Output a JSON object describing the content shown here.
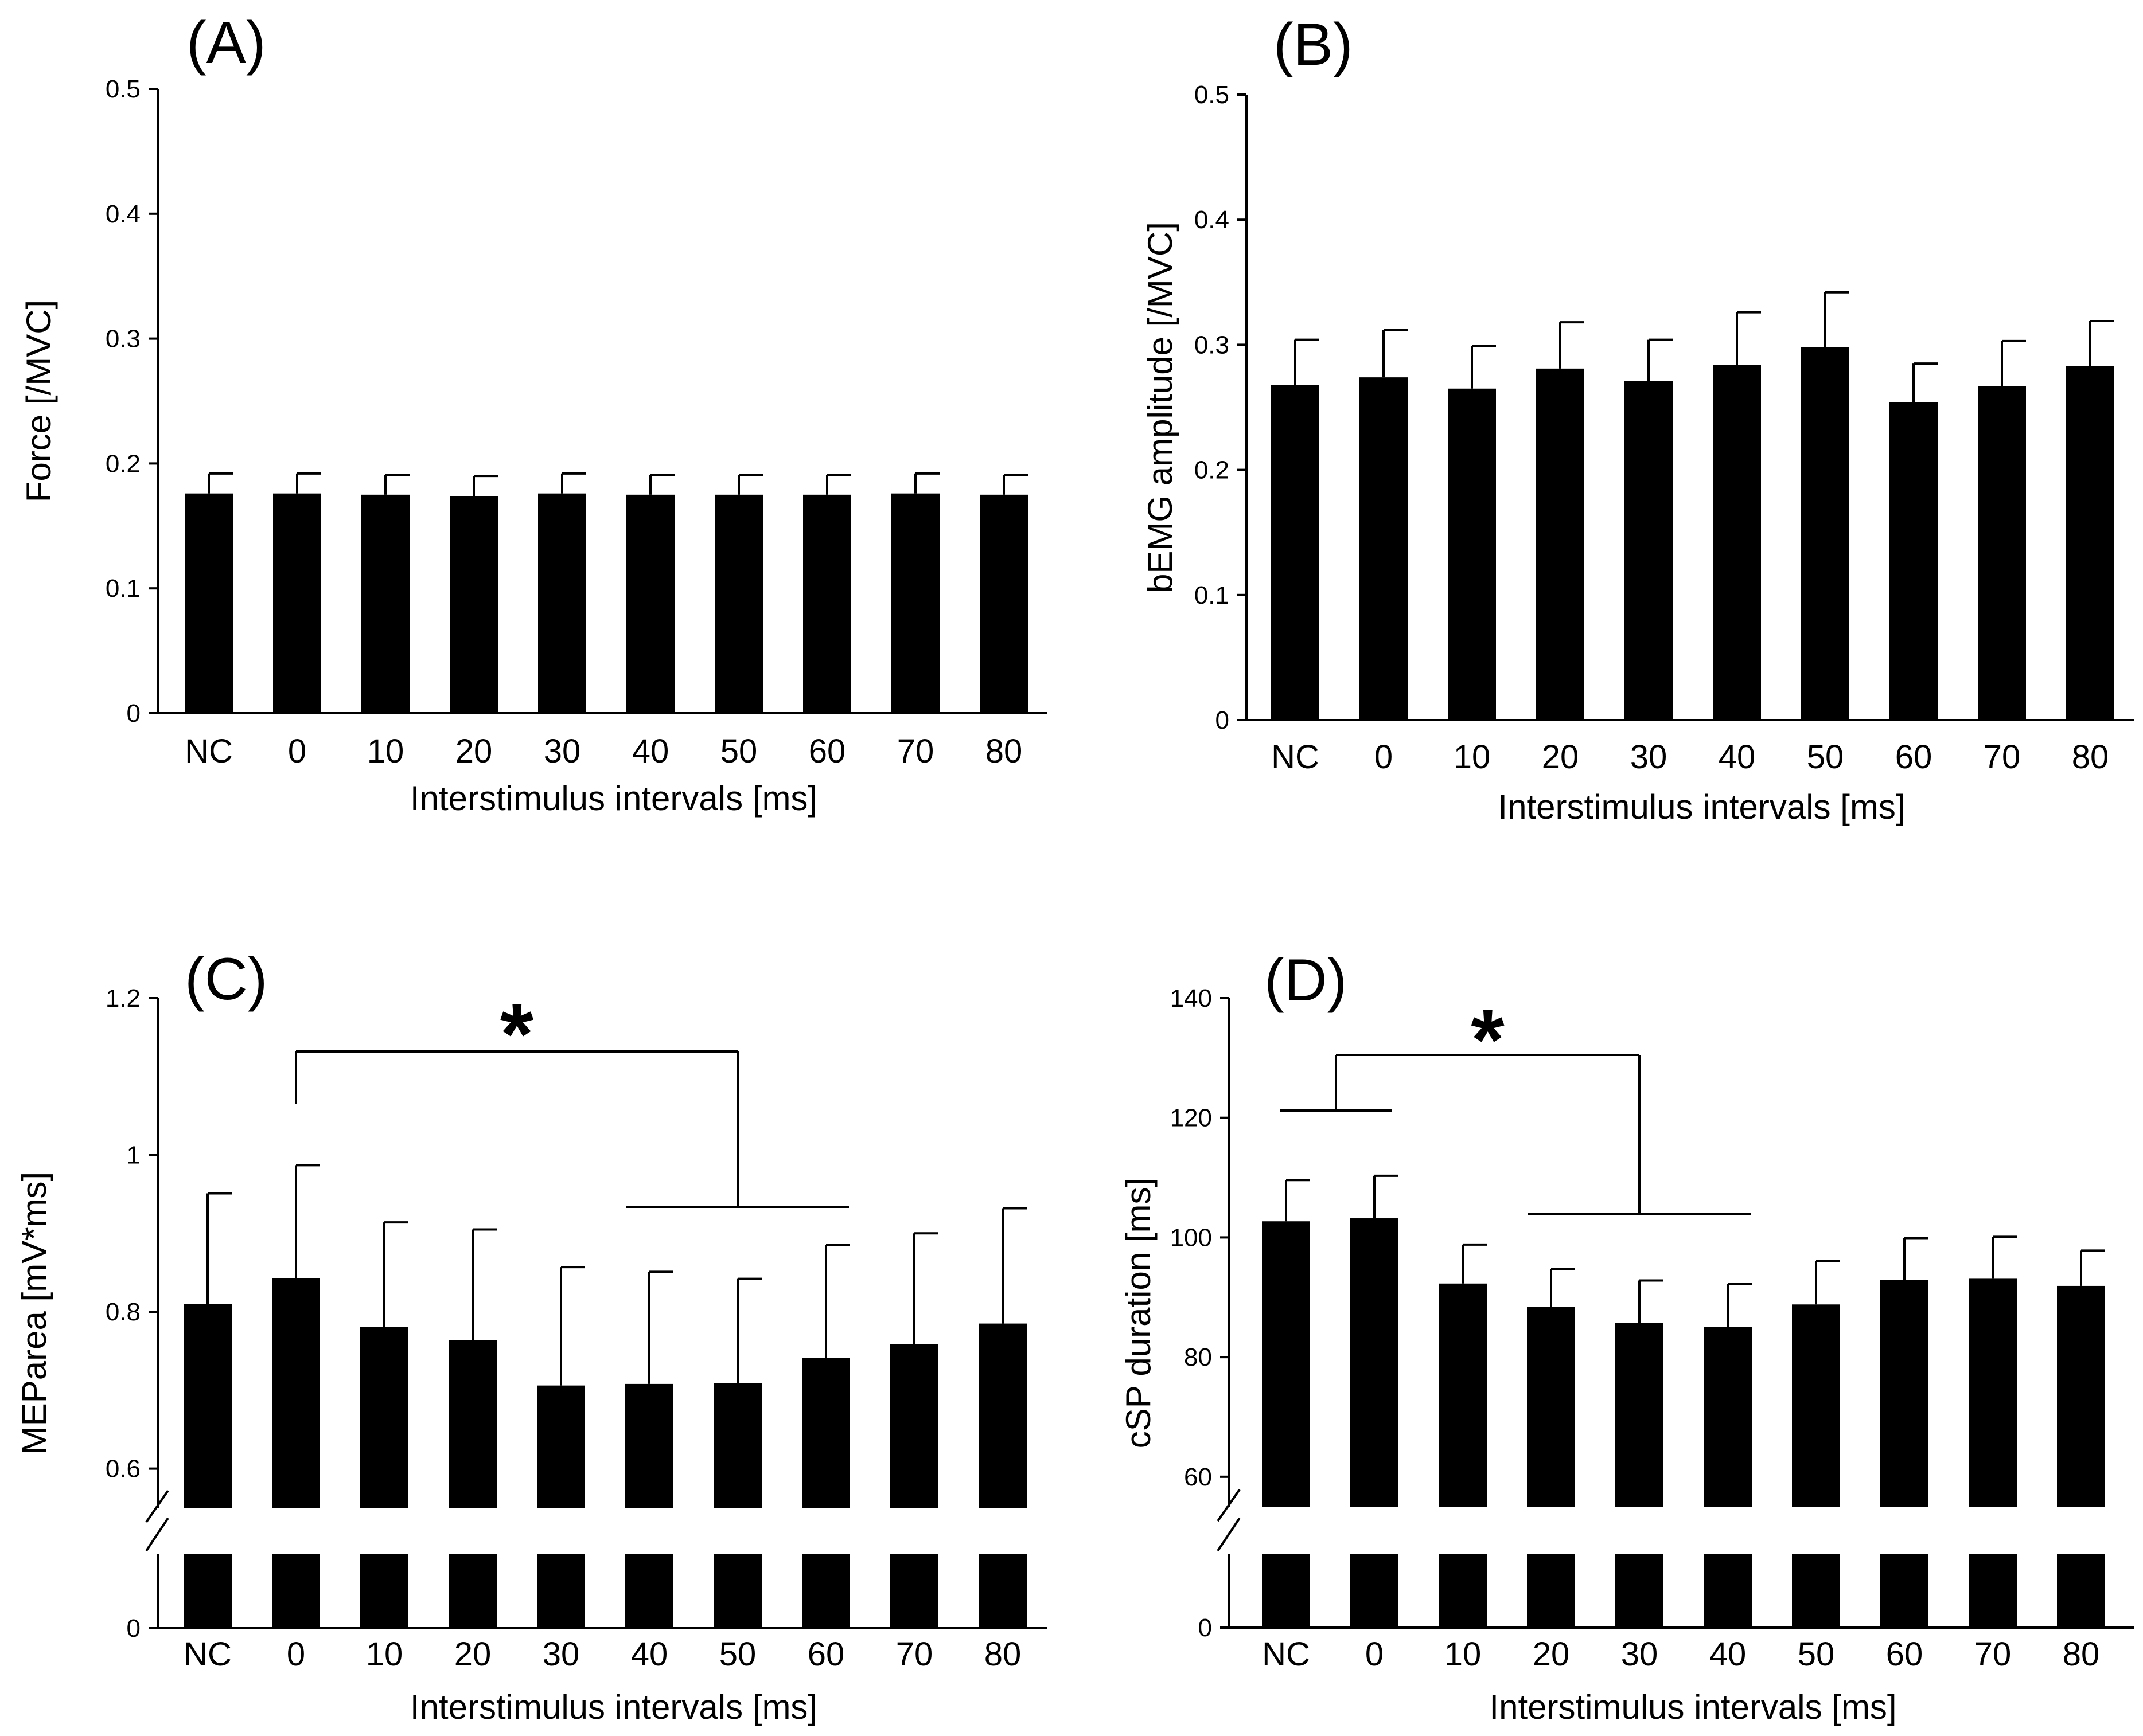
{
  "chart_data": [
    {
      "panel": "(A)",
      "type": "bar",
      "xlabel": "Interstimulus intervals [ms]",
      "ylabel": "Force [/MVC]",
      "categories": [
        "NC",
        "0",
        "10",
        "20",
        "30",
        "40",
        "50",
        "60",
        "70",
        "80"
      ],
      "values": [
        0.176,
        0.176,
        0.175,
        0.174,
        0.176,
        0.175,
        0.175,
        0.175,
        0.176,
        0.175
      ],
      "errors": [
        0.016,
        0.016,
        0.016,
        0.016,
        0.016,
        0.016,
        0.016,
        0.016,
        0.016,
        0.016
      ],
      "ylim": [
        0,
        0.5
      ],
      "yticks": [
        0,
        0.1,
        0.2,
        0.3,
        0.4,
        0.5
      ],
      "ytick_labels": [
        "0",
        "0.1",
        "0.2",
        "0.3",
        "0.4",
        "0.5"
      ],
      "axis_break": false,
      "significance": []
    },
    {
      "panel": "(B)",
      "type": "bar",
      "xlabel": "Interstimulus intervals [ms]",
      "ylabel": "bEMG amplitude [/MVC]",
      "categories": [
        "NC",
        "0",
        "10",
        "20",
        "30",
        "40",
        "50",
        "60",
        "70",
        "80"
      ],
      "values": [
        0.268,
        0.274,
        0.265,
        0.281,
        0.271,
        0.284,
        0.298,
        0.254,
        0.267,
        0.283
      ],
      "errors": [
        0.036,
        0.038,
        0.034,
        0.037,
        0.033,
        0.042,
        0.044,
        0.031,
        0.036,
        0.036
      ],
      "ylim": [
        0,
        0.5
      ],
      "yticks": [
        0,
        0.1,
        0.2,
        0.3,
        0.4,
        0.5
      ],
      "ytick_labels": [
        "0",
        "0.1",
        "0.2",
        "0.3",
        "0.4",
        "0.5"
      ],
      "axis_break": false,
      "significance": []
    },
    {
      "panel": "(C)",
      "type": "bar",
      "xlabel": "Interstimulus intervals [ms]",
      "ylabel": "MEParea [mV*ms]",
      "categories": [
        "NC",
        "0",
        "10",
        "20",
        "30",
        "40",
        "50",
        "60",
        "70",
        "80"
      ],
      "values": [
        0.81,
        0.843,
        0.781,
        0.764,
        0.706,
        0.708,
        0.709,
        0.741,
        0.759,
        0.785
      ],
      "errors": [
        0.141,
        0.144,
        0.133,
        0.141,
        0.151,
        0.143,
        0.133,
        0.144,
        0.141,
        0.147
      ],
      "ylim": [
        0.55,
        1.2
      ],
      "yticks": [
        0.6,
        0.8,
        1.0,
        1.2
      ],
      "ytick_labels": [
        "0.6",
        "0.8",
        "1",
        "1.2"
      ],
      "axis_break": true,
      "break_zero_label": "0",
      "significance": [
        {
          "label": "*",
          "from": [
            "0"
          ],
          "to": [
            "40",
            "50",
            "60"
          ]
        }
      ]
    },
    {
      "panel": "(D)",
      "type": "bar",
      "xlabel": "Interstimulus intervals [ms]",
      "ylabel": "cSP duration [ms]",
      "categories": [
        "NC",
        "0",
        "10",
        "20",
        "30",
        "40",
        "50",
        "60",
        "70",
        "80"
      ],
      "values": [
        102.7,
        103.2,
        92.3,
        88.4,
        85.7,
        85.0,
        88.8,
        92.9,
        93.1,
        91.9
      ],
      "errors": [
        6.9,
        7.1,
        6.5,
        6.3,
        7.1,
        7.2,
        7.3,
        7.0,
        7.0,
        5.9
      ],
      "ylim": [
        55,
        140
      ],
      "yticks": [
        60,
        80,
        100,
        120,
        140
      ],
      "ytick_labels": [
        "60",
        "80",
        "100",
        "120",
        "140"
      ],
      "axis_break": true,
      "break_zero_label": "0",
      "significance": [
        {
          "label": "*",
          "from": [
            "NC",
            "0"
          ],
          "to": [
            "20",
            "30",
            "40"
          ]
        }
      ]
    }
  ]
}
